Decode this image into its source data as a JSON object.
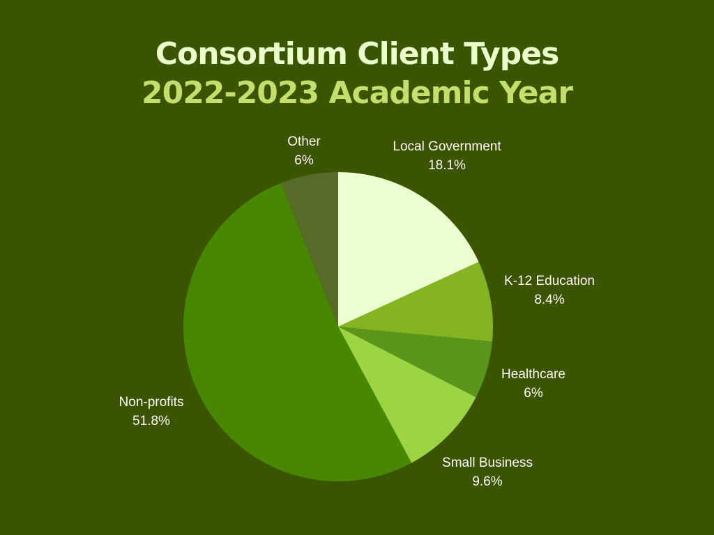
{
  "chart_data": {
    "type": "pie",
    "title": "Consortium Client Types",
    "subtitle": "2022-2023 Academic Year",
    "start_angle_deg": 0,
    "direction": "clockwise",
    "slices": [
      {
        "label": "Local Government",
        "value": 18.1,
        "value_label": "18.1%",
        "color": "#ecffd0"
      },
      {
        "label": "K-12 Education",
        "value": 8.4,
        "value_label": "8.4%",
        "color": "#84b421"
      },
      {
        "label": "Healthcare",
        "value": 6,
        "value_label": "6%",
        "color": "#5a961c"
      },
      {
        "label": "Small Business",
        "value": 9.6,
        "value_label": "9.6%",
        "color": "#9dd443"
      },
      {
        "label": "Non-profits",
        "value": 51.8,
        "value_label": "51.8%",
        "color": "#488800"
      },
      {
        "label": "Other",
        "value": 6,
        "value_label": "6%",
        "color": "#566b28"
      }
    ]
  }
}
